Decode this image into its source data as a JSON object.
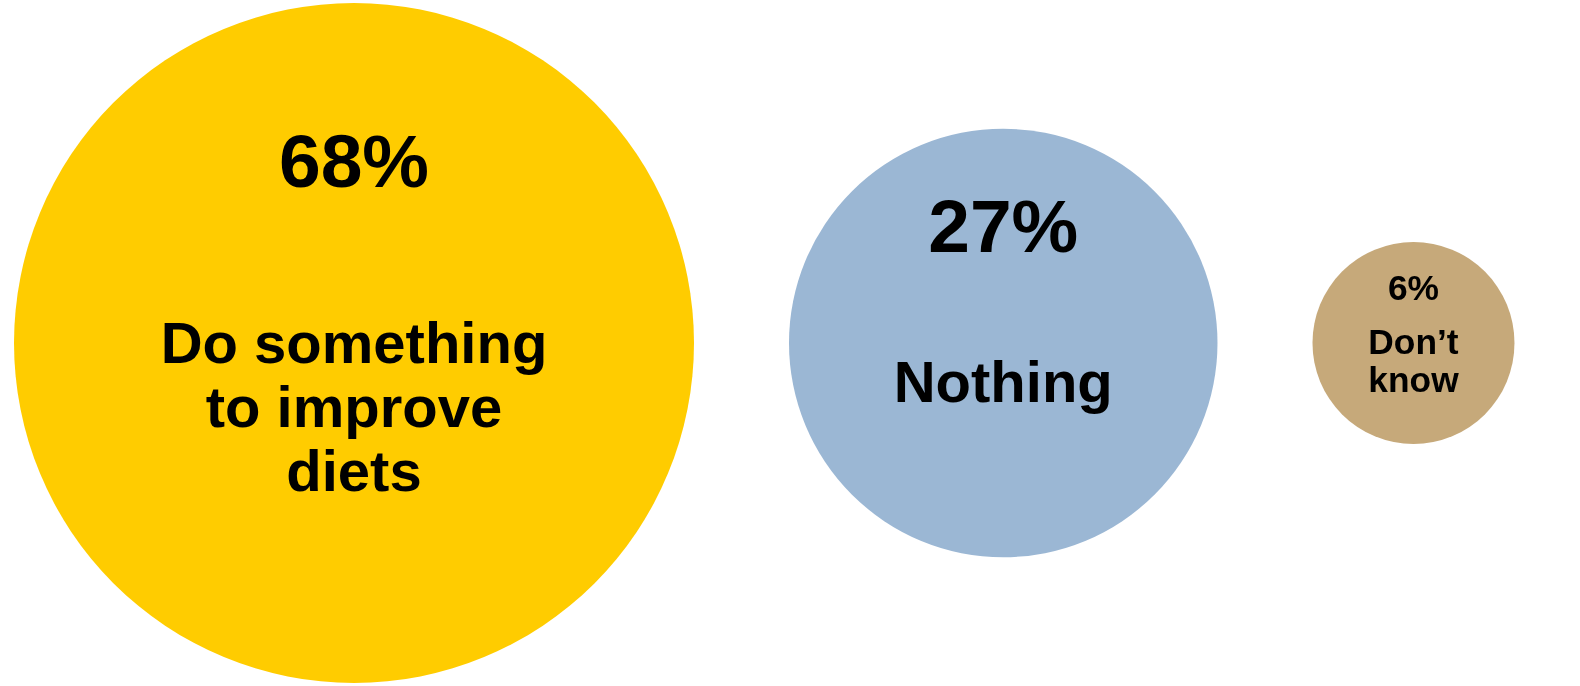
{
  "chart_data": {
    "type": "other",
    "categories": [
      "Do something to improve diets",
      "Nothing",
      "Don’t know"
    ],
    "values": [
      68,
      27,
      6
    ],
    "value_labels": [
      "68%",
      "27%",
      "6%"
    ],
    "colors": [
      "#ffcc00",
      "#9bb7d4",
      "#c6a97a"
    ]
  }
}
